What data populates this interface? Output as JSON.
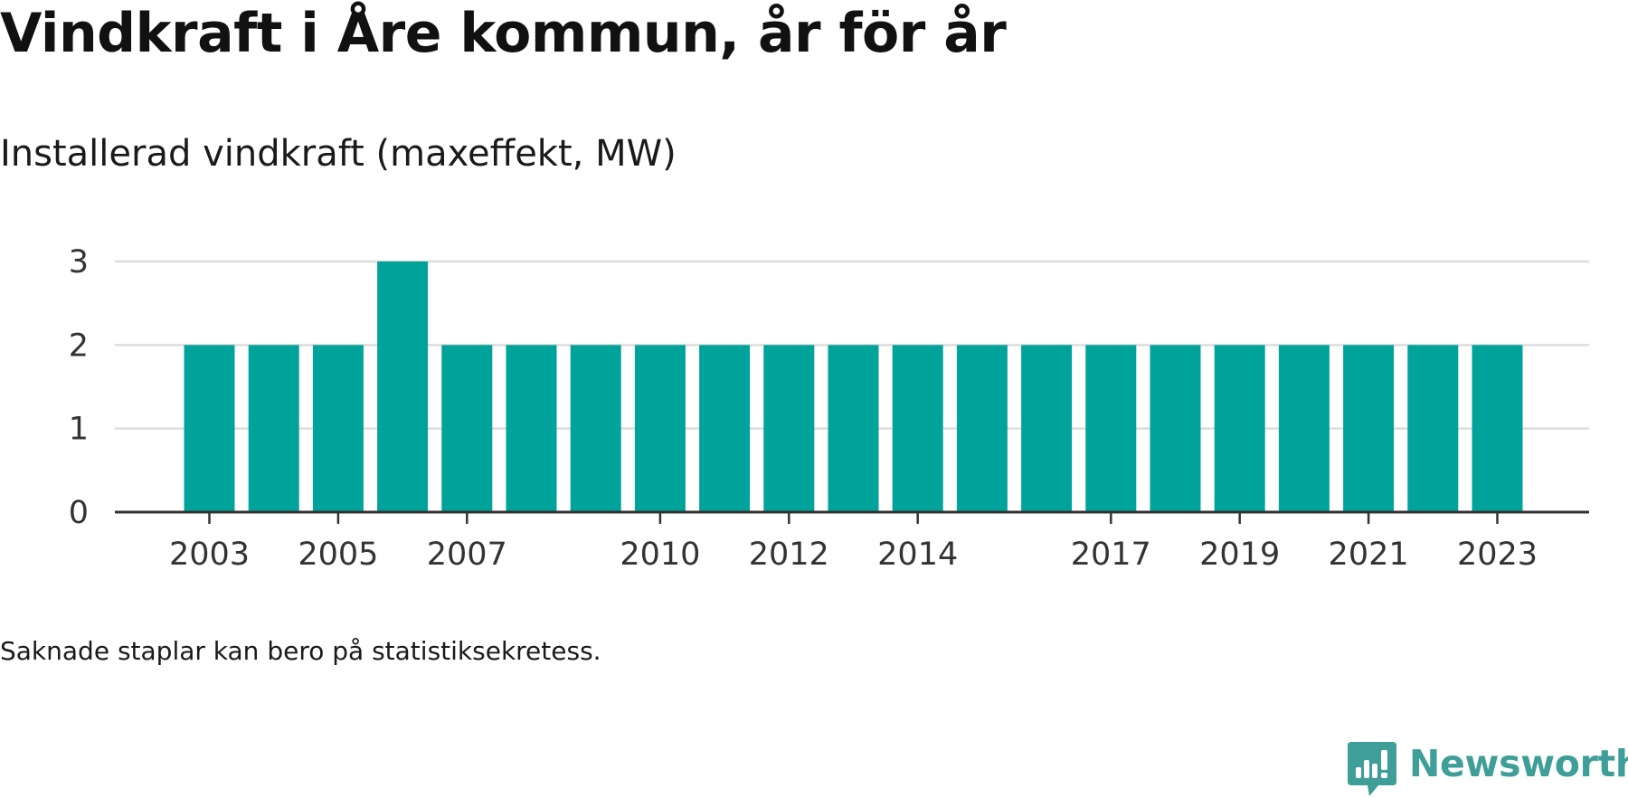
{
  "header": {
    "title": "Vindkraft i Åre kommun, år för år",
    "subtitle": "Installerad vindkraft (maxeffekt, MW)"
  },
  "footnote": "Saknade staplar kan bero på statistiksekretess.",
  "brand": {
    "name": "Newsworthy",
    "icon": "newsworthy-logo-icon",
    "color": "#3f9e98"
  },
  "chart_data": {
    "type": "bar",
    "categories": [
      "2003",
      "2004",
      "2005",
      "2006",
      "2007",
      "2008",
      "2009",
      "2010",
      "2011",
      "2012",
      "2013",
      "2014",
      "2015",
      "2016",
      "2017",
      "2018",
      "2019",
      "2020",
      "2021",
      "2022",
      "2023"
    ],
    "values": [
      2,
      2,
      2,
      3,
      2,
      2,
      2,
      2,
      2,
      2,
      2,
      2,
      2,
      2,
      2,
      2,
      2,
      2,
      2,
      2,
      2
    ],
    "x_tick_labels": [
      "2003",
      "2005",
      "2007",
      "2010",
      "2012",
      "2014",
      "2017",
      "2019",
      "2021",
      "2023"
    ],
    "y_ticks": [
      0,
      1,
      2,
      3
    ],
    "ylim": [
      0,
      3
    ],
    "grid": true,
    "bar_color": "#00a39a",
    "grid_color": "#dddddd",
    "axis_color": "#333333"
  }
}
